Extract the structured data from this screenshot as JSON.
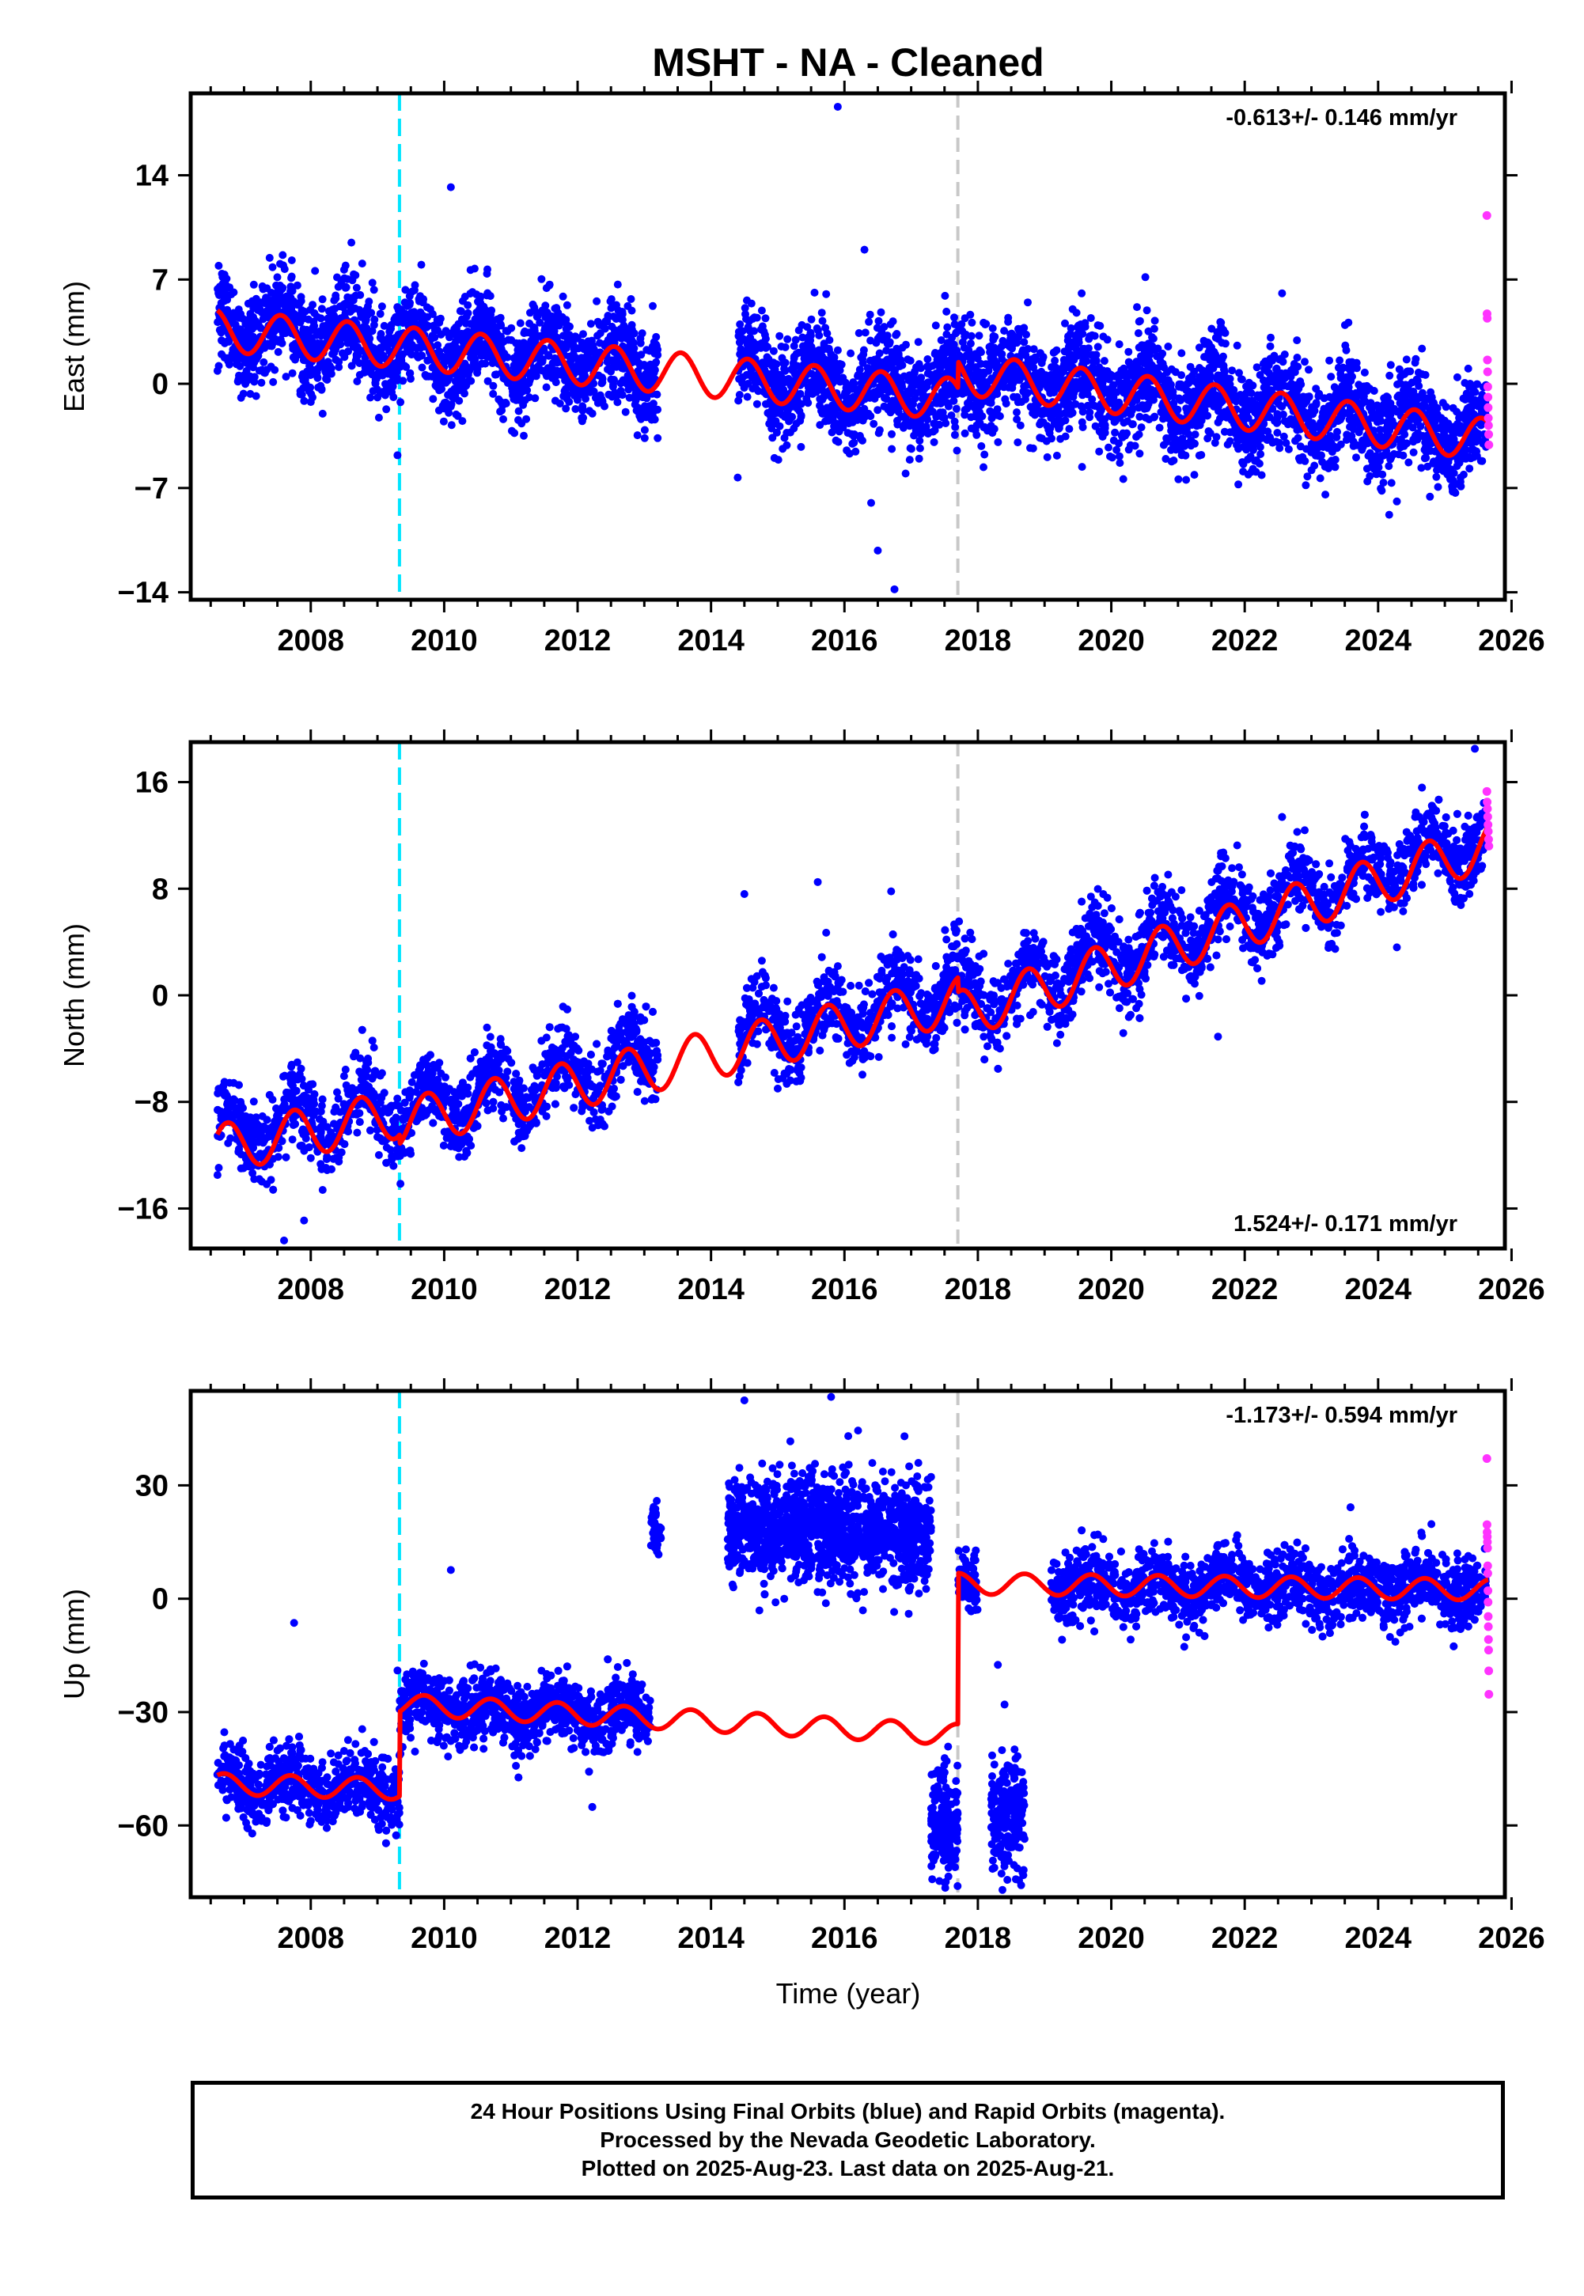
{
  "title": "MSHT  - NA - Cleaned",
  "xlabel": "Time (year)",
  "colors": {
    "final_orbits": "#0000ff",
    "rapid_orbits": "#ff33ff",
    "model": "#ff0000",
    "cyan_marker": "#00e5ff",
    "gray_marker": "#c8c8c8"
  },
  "chart_data": [
    {
      "type": "scatter",
      "ylabel": "East (mm)",
      "rate": "-0.613+/- 0.146 mm/yr",
      "xlim": [
        2006.2,
        2025.9
      ],
      "ylim": [
        -14.5,
        19.5
      ],
      "xticks": [
        2008,
        2010,
        2012,
        2014,
        2016,
        2018,
        2020,
        2022,
        2024,
        2026
      ],
      "yticks": [
        -14,
        -7,
        0,
        7,
        14
      ],
      "vlines": [
        {
          "x": 2009.33,
          "style": "cyan-dashed"
        },
        {
          "x": 2017.7,
          "style": "gray-dashed"
        }
      ],
      "model": {
        "segments": [
          {
            "x0": 2006.6,
            "x1": 2017.7,
            "y0": 3.6,
            "slope": -0.42
          },
          {
            "x0": 2017.7,
            "x1": 2025.65,
            "y0": 0.7,
            "slope": -0.56
          }
        ],
        "annual_amplitude": 1.4,
        "annual_phase": 0.3
      },
      "blue_points": {
        "n": 5200,
        "sigma": 1.7,
        "mean_offset": 0.2,
        "gaps": [
          [
            2013.2,
            2014.4
          ]
        ],
        "outliers": [
          [
            2015.9,
            18.6
          ],
          [
            2010.1,
            13.2
          ],
          [
            2016.3,
            9.0
          ],
          [
            2016.5,
            -11.2
          ],
          [
            2016.75,
            -13.8
          ],
          [
            2016.4,
            -8.0
          ],
          [
            2014.4,
            -6.3
          ],
          [
            2009.3,
            -4.8
          ]
        ]
      },
      "magenta_points": {
        "x_range": [
          2025.63,
          2025.66
        ],
        "values": [
          11.3,
          4.7,
          4.4,
          1.6,
          0.8,
          -0.2,
          -0.9,
          -1.6,
          -2.3,
          -2.8,
          -3.4,
          -4.1
        ]
      }
    },
    {
      "type": "scatter",
      "ylabel": "North (mm)",
      "rate": "1.524+/- 0.171 mm/yr",
      "xlim": [
        2006.2,
        2025.9
      ],
      "ylim": [
        -19,
        19
      ],
      "xticks": [
        2008,
        2010,
        2012,
        2014,
        2016,
        2018,
        2020,
        2022,
        2024,
        2026
      ],
      "yticks": [
        -16,
        -8,
        0,
        8,
        16
      ],
      "vlines": [
        {
          "x": 2009.33,
          "style": "cyan-dashed"
        },
        {
          "x": 2017.7,
          "style": "gray-dashed"
        }
      ],
      "model": {
        "segments": [
          {
            "x0": 2006.6,
            "x1": 2009.33,
            "y0": -11.5,
            "slope": 0.95
          },
          {
            "x0": 2009.33,
            "x1": 2017.7,
            "y0": -9.6,
            "slope": 1.1
          },
          {
            "x0": 2017.7,
            "x1": 2025.65,
            "y0": -1.5,
            "slope": 1.6
          }
        ],
        "annual_amplitude": 1.8,
        "annual_phase": 0.5
      },
      "blue_points": {
        "n": 5200,
        "sigma": 1.5,
        "mean_offset": 0.7,
        "gaps": [
          [
            2013.2,
            2014.4
          ]
        ],
        "outliers": [
          [
            2007.6,
            -18.4
          ],
          [
            2007.9,
            -16.9
          ],
          [
            2014.5,
            7.6
          ],
          [
            2015.6,
            8.5
          ],
          [
            2016.7,
            7.8
          ],
          [
            2025.45,
            18.5
          ],
          [
            2021.6,
            -3.1
          ],
          [
            2015.0,
            -7.0
          ]
        ]
      },
      "magenta_points": {
        "x_range": [
          2025.63,
          2025.66
        ],
        "values": [
          15.3,
          14.5,
          14.0,
          13.4,
          12.8,
          12.3,
          11.7,
          11.2
        ]
      }
    },
    {
      "type": "scatter",
      "ylabel": "Up (mm)",
      "rate": "-1.173+/- 0.594 mm/yr",
      "xlim": [
        2006.2,
        2025.9
      ],
      "ylim": [
        -79,
        55
      ],
      "xticks": [
        2008,
        2010,
        2012,
        2014,
        2016,
        2018,
        2020,
        2022,
        2024,
        2026
      ],
      "yticks": [
        -60,
        -30,
        0,
        30
      ],
      "vlines": [
        {
          "x": 2009.33,
          "style": "cyan-dashed"
        },
        {
          "x": 2017.7,
          "style": "gray-dashed"
        }
      ],
      "model": {
        "segments": [
          {
            "x0": 2006.6,
            "x1": 2009.33,
            "y0": -49,
            "slope": -0.5
          },
          {
            "x0": 2009.33,
            "x1": 2017.7,
            "y0": -28,
            "slope": -0.95
          },
          {
            "x0": 2017.7,
            "x1": 2025.65,
            "y0": 4,
            "slope": -0.2
          }
        ],
        "annual_amplitude": 2.8,
        "annual_phase": 0.45
      },
      "blue_points": {
        "n": 5200,
        "sigma": 4.5,
        "level_overrides": [
          {
            "x0": 2013.1,
            "x1": 2013.25,
            "y": 18,
            "n": 40
          },
          {
            "x0": 2014.25,
            "x1": 2017.3,
            "y": 19,
            "trend": -0.5,
            "n": 1300,
            "sigma": 7
          },
          {
            "x0": 2017.3,
            "x1": 2017.7,
            "y": -60,
            "n": 220,
            "sigma": 7
          },
          {
            "x0": 2018.2,
            "x1": 2018.7,
            "y": -58,
            "n": 220,
            "sigma": 7
          }
        ],
        "gaps": [
          [
            2013.25,
            2014.25
          ],
          [
            2018.0,
            2018.2
          ],
          [
            2018.7,
            2019.1
          ]
        ],
        "outliers": [
          [
            2007.75,
            -6.4
          ],
          [
            2010.1,
            7.6
          ],
          [
            2014.5,
            52.5
          ],
          [
            2015.8,
            53.4
          ],
          [
            2016.9,
            43
          ],
          [
            2018.3,
            -17.5
          ],
          [
            2018.4,
            -28.0
          ],
          [
            2009.3,
            -19
          ]
        ]
      },
      "magenta_points": {
        "x_range": [
          2025.63,
          2025.66
        ],
        "values": [
          37.1,
          19.6,
          17.6,
          16.4,
          15.0,
          13.4,
          8.7,
          6.7,
          2.1,
          -0.9,
          -4.7,
          -7.4,
          -10.8,
          -13.6,
          -19.1,
          -25.3
        ]
      }
    }
  ],
  "footer": {
    "line1": "24 Hour Positions Using Final Orbits (blue) and Rapid Orbits (magenta).",
    "line2": "Processed by the Nevada Geodetic Laboratory.",
    "line3": "Plotted on 2025-Aug-23. Last data on 2025-Aug-21."
  }
}
